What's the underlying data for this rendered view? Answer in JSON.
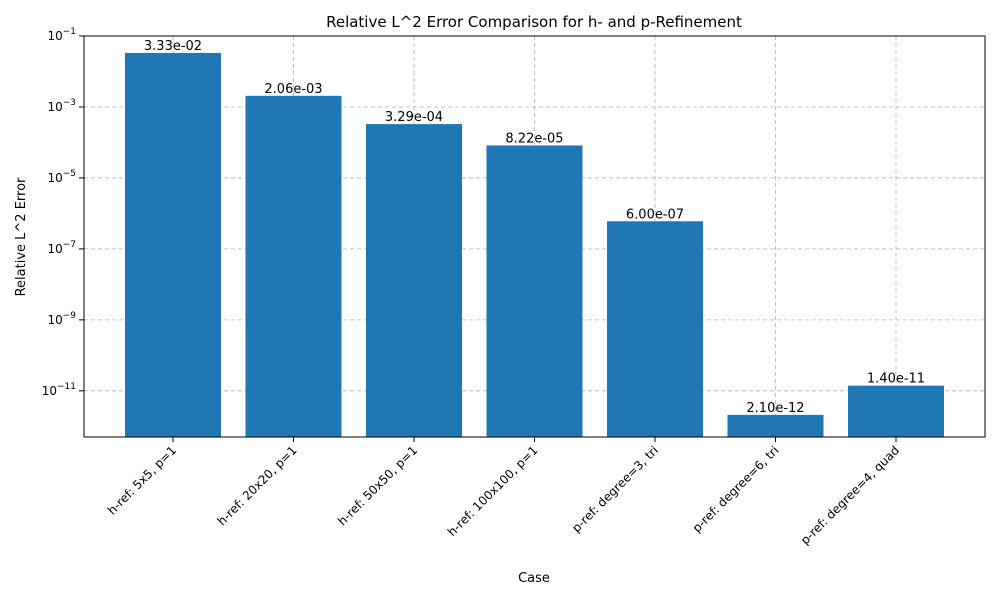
{
  "chart_data": {
    "type": "bar",
    "title": "Relative L^2 Error Comparison for h- and p-Refinement",
    "xlabel": "Case",
    "ylabel": "Relative L^2 Error",
    "yscale": "log",
    "ylim": [
      5e-13,
      0.1
    ],
    "y_ticks": [
      {
        "value": 1e-11,
        "base": "10",
        "exp": "−11"
      },
      {
        "value": 1e-09,
        "base": "10",
        "exp": "−9"
      },
      {
        "value": 1e-07,
        "base": "10",
        "exp": "−7"
      },
      {
        "value": 1e-05,
        "base": "10",
        "exp": "−5"
      },
      {
        "value": 0.001,
        "base": "10",
        "exp": "−3"
      },
      {
        "value": 0.1,
        "base": "10",
        "exp": "−1"
      }
    ],
    "grid": true,
    "bar_color": "#1f77b4",
    "categories": [
      "h-ref: 5x5, p=1",
      "h-ref: 20x20, p=1",
      "h-ref: 50x50, p=1",
      "h-ref: 100x100, p=1",
      "p-ref: degree=3, tri",
      "p-ref: degree=6, tri",
      "p-ref: degree=4, quad"
    ],
    "values": [
      0.0333,
      0.00206,
      0.000329,
      8.22e-05,
      6e-07,
      2.1e-12,
      1.4e-11
    ],
    "data_labels": [
      "3.33e-02",
      "2.06e-03",
      "3.29e-04",
      "8.22e-05",
      "6.00e-07",
      "2.10e-12",
      "1.40e-11"
    ]
  }
}
